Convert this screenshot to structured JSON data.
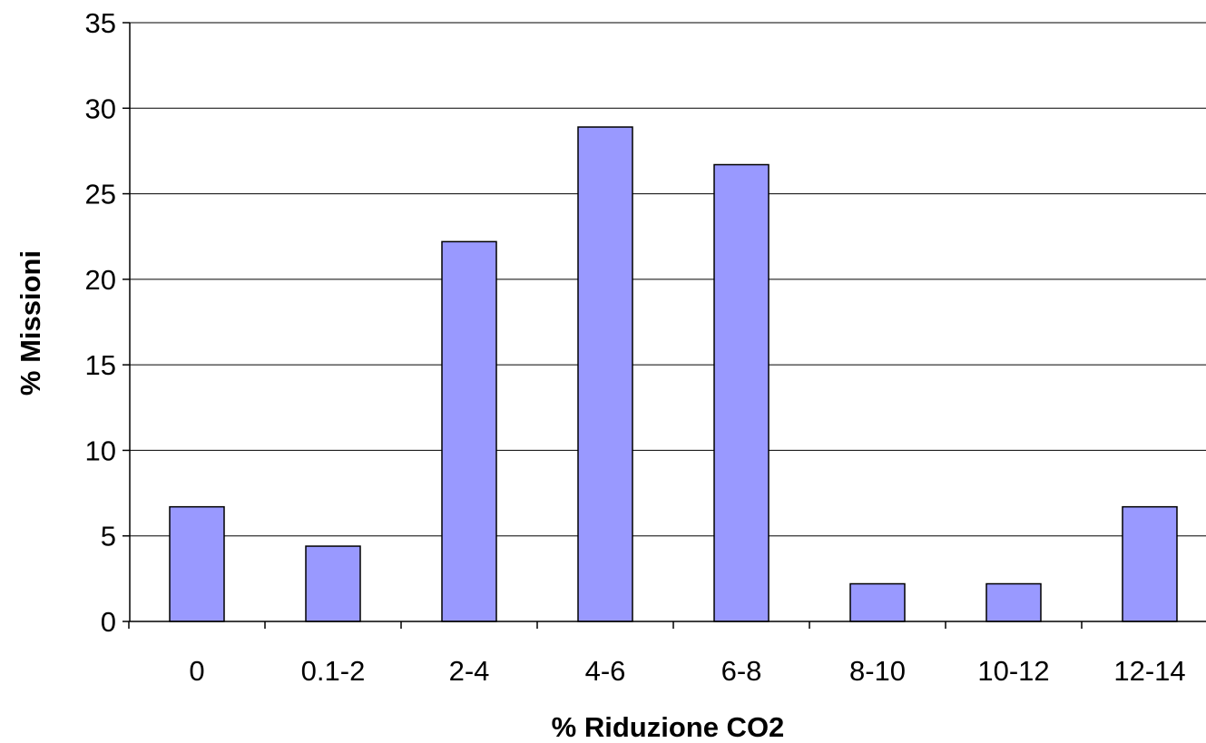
{
  "chart_data": {
    "type": "bar",
    "categories": [
      "0",
      "0.1-2",
      "2-4",
      "4-6",
      "6-8",
      "8-10",
      "10-12",
      "12-14"
    ],
    "values": [
      6.7,
      4.4,
      22.2,
      28.9,
      26.7,
      2.2,
      2.2,
      6.7
    ],
    "xlabel": "% Riduzione CO2",
    "ylabel": "% Missioni",
    "ylim": [
      0,
      35
    ],
    "yticks": [
      "0",
      "5",
      "10",
      "15",
      "20",
      "25",
      "30",
      "35"
    ],
    "grid": "horizontal",
    "legend": "none",
    "bar_color": "#9999ff"
  }
}
